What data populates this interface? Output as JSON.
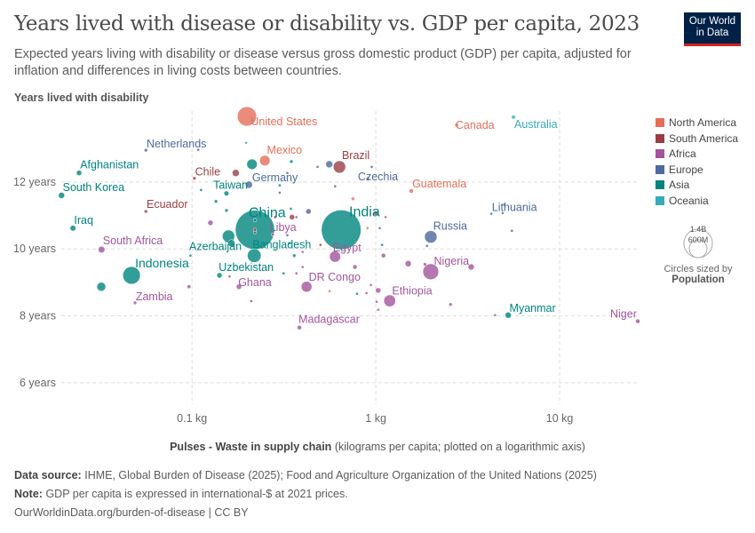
{
  "header": {
    "title": "Years lived with disease or disability vs. GDP per capita, 2023",
    "subtitle": "Expected years living with disability or disease versus gross domestic product (GDP) per capita, adjusted for inflation and differences in living costs between countries.",
    "logo": "Our World in Data"
  },
  "legend": {
    "regions": [
      {
        "name": "North America",
        "color": "#E56E5A"
      },
      {
        "name": "South America",
        "color": "#9A3D43"
      },
      {
        "name": "Africa",
        "color": "#A2559C"
      },
      {
        "name": "Europe",
        "color": "#4C6A9C"
      },
      {
        "name": "Asia",
        "color": "#00847E"
      },
      {
        "name": "Oceania",
        "color": "#38AABA"
      }
    ],
    "size_big": "1.4B",
    "size_small": "600M",
    "size_note": "Circles sized by",
    "size_var": "Population"
  },
  "footer": {
    "source_label": "Data source:",
    "source": "IHME, Global Burden of Disease (2025); Food and Agriculture Organization of the United Nations (2025)",
    "note_label": "Note:",
    "note": "GDP per capita is expressed in international-$ at 2021 prices.",
    "url": "OurWorldinData.org/burden-of-disease | CC BY"
  },
  "chart_data": {
    "type": "scatter",
    "xlabel": "Pulses - Waste in supply chain",
    "xlabel_note": "(kilograms per capita; plotted on a logarithmic axis)",
    "ylabel": "Years lived with disability",
    "x_scale": "log",
    "xlim": [
      0.0186,
      27.2
    ],
    "ylim": [
      5.36,
      14.12
    ],
    "x_ticks": [
      {
        "v": 0.1,
        "label": "0.1 kg"
      },
      {
        "v": 1,
        "label": "1 kg"
      },
      {
        "v": 10,
        "label": "10 kg"
      }
    ],
    "y_ticks": [
      {
        "v": 6,
        "label": "6 years"
      },
      {
        "v": 8,
        "label": "8 years"
      },
      {
        "v": 10,
        "label": "10 years"
      },
      {
        "v": 12,
        "label": "12 years"
      }
    ],
    "grid": true,
    "legend_position": "right",
    "points": [
      {
        "name": "United States",
        "region": "North America",
        "x": 0.199,
        "y": 13.96,
        "pop": 340
      },
      {
        "name": "Canada",
        "region": "North America",
        "x": 2.75,
        "y": 13.7,
        "pop": 12
      },
      {
        "name": "Australia",
        "region": "Oceania",
        "x": 5.61,
        "y": 13.94,
        "pop": 14
      },
      {
        "name": "Netherlands",
        "region": "Europe",
        "x": 0.0561,
        "y": 12.95,
        "pop": 11
      },
      {
        "name": "Mexico",
        "region": "North America",
        "x": 0.249,
        "y": 12.64,
        "pop": 100
      },
      {
        "name": "Brazil",
        "region": "South America",
        "x": 0.634,
        "y": 12.45,
        "pop": 140
      },
      {
        "name": "Afghanistan",
        "region": "Asia",
        "x": 0.0243,
        "y": 12.27,
        "pop": 26
      },
      {
        "name": "Chile",
        "region": "South America",
        "x": 0.103,
        "y": 12.11,
        "pop": 11
      },
      {
        "name": "Germany",
        "region": "Europe",
        "x": 0.204,
        "y": 11.92,
        "pop": 46
      },
      {
        "name": "Czechia",
        "region": "Europe",
        "x": 0.905,
        "y": 12.1,
        "pop": 11
      },
      {
        "name": "South Korea",
        "region": "Asia",
        "x": 0.0195,
        "y": 11.6,
        "pop": 35
      },
      {
        "name": "Guatemala",
        "region": "North America",
        "x": 1.56,
        "y": 11.73,
        "pop": 18
      },
      {
        "name": "Taiwan",
        "region": "Asia",
        "x": 0.154,
        "y": 11.66,
        "pop": 23
      },
      {
        "name": "Ecuador",
        "region": "South America",
        "x": 0.0561,
        "y": 11.12,
        "pop": 11
      },
      {
        "name": "Lithuania",
        "region": "Europe",
        "x": 4.25,
        "y": 11.05,
        "pop": 6
      },
      {
        "name": "China",
        "region": "Asia",
        "x": 0.22,
        "y": 10.57,
        "pop": 1410
      },
      {
        "name": "India",
        "region": "Asia",
        "x": 0.648,
        "y": 10.57,
        "pop": 1440
      },
      {
        "name": "Iraq",
        "region": "Asia",
        "x": 0.0225,
        "y": 10.62,
        "pop": 30
      },
      {
        "name": "Libya",
        "region": "Africa",
        "x": 0.275,
        "y": 10.43,
        "pop": 7
      },
      {
        "name": "Russia",
        "region": "Europe",
        "x": 1.99,
        "y": 10.36,
        "pop": 144
      },
      {
        "name": "Bangladesh",
        "region": "Asia",
        "x": 0.218,
        "y": 9.8,
        "pop": 173
      },
      {
        "name": "South Africa",
        "region": "Africa",
        "x": 0.0322,
        "y": 9.98,
        "pop": 40
      },
      {
        "name": "Egypt",
        "region": "Africa",
        "x": 0.6,
        "y": 9.77,
        "pop": 114
      },
      {
        "name": "Azerbaijan",
        "region": "Asia",
        "x": 0.098,
        "y": 9.8,
        "pop": 7
      },
      {
        "name": "Indonesia",
        "region": "Asia",
        "x": 0.0469,
        "y": 9.21,
        "pop": 281
      },
      {
        "name": "Nigeria",
        "region": "Africa",
        "x": 1.99,
        "y": 9.32,
        "pop": 228
      },
      {
        "name": "Uzbekistan",
        "region": "Asia",
        "x": 0.141,
        "y": 9.21,
        "pop": 26
      },
      {
        "name": "DR Congo",
        "region": "Africa",
        "x": 0.42,
        "y": 8.87,
        "pop": 106
      },
      {
        "name": "Ghana",
        "region": "Africa",
        "x": 0.18,
        "y": 8.87,
        "pop": 26
      },
      {
        "name": "Ethiopia",
        "region": "Africa",
        "x": 1.19,
        "y": 8.45,
        "pop": 129
      },
      {
        "name": "Zambia",
        "region": "Africa",
        "x": 0.049,
        "y": 8.39,
        "pop": 11
      },
      {
        "name": "Myanmar",
        "region": "Asia",
        "x": 5.25,
        "y": 8.02,
        "pop": 35
      },
      {
        "name": "Madagascar",
        "region": "Africa",
        "x": 0.384,
        "y": 7.65,
        "pop": 18
      },
      {
        "name": "Niger",
        "region": "Africa",
        "x": 26.6,
        "y": 7.84,
        "pop": 18
      },
      {
        "region": "Asia",
        "x": 0.0321,
        "y": 8.87,
        "pop": 72
      },
      {
        "region": "Africa",
        "x": 0.0963,
        "y": 8.87,
        "pop": 12
      },
      {
        "region": "Oceania",
        "x": 0.197,
        "y": 13.17,
        "pop": 6
      },
      {
        "region": "Europe",
        "x": 0.108,
        "y": 12.96,
        "pop": 6
      },
      {
        "region": "South America",
        "x": 0.173,
        "y": 12.27,
        "pop": 46
      },
      {
        "region": "Asia",
        "x": 0.212,
        "y": 12.53,
        "pop": 100
      },
      {
        "region": "Asia",
        "x": 0.347,
        "y": 12.61,
        "pop": 11
      },
      {
        "region": "Europe",
        "x": 0.482,
        "y": 12.45,
        "pop": 6
      },
      {
        "region": "Europe",
        "x": 0.558,
        "y": 12.53,
        "pop": 46
      },
      {
        "region": "Europe",
        "x": 0.95,
        "y": 12.45,
        "pop": 6
      },
      {
        "region": "Europe",
        "x": 0.33,
        "y": 12.27,
        "pop": 6
      },
      {
        "region": "Europe",
        "x": 0.6,
        "y": 11.87,
        "pop": 6
      },
      {
        "region": "Asia",
        "x": 0.3,
        "y": 11.9,
        "pop": 6
      },
      {
        "region": "Europe",
        "x": 0.3,
        "y": 11.68,
        "pop": 6
      },
      {
        "region": "Asia",
        "x": 0.112,
        "y": 11.76,
        "pop": 6
      },
      {
        "region": "Asia",
        "x": 0.135,
        "y": 11.42,
        "pop": 11
      },
      {
        "region": "Asia",
        "x": 0.154,
        "y": 11.15,
        "pop": 11
      },
      {
        "region": "Asia",
        "x": 0.345,
        "y": 11.2,
        "pop": 6
      },
      {
        "region": "Europe",
        "x": 0.43,
        "y": 11.12,
        "pop": 26
      },
      {
        "region": "North America",
        "x": 0.75,
        "y": 11.5,
        "pop": 11
      },
      {
        "region": "Africa",
        "x": 0.37,
        "y": 10.95,
        "pop": 6
      },
      {
        "region": "South America",
        "x": 0.283,
        "y": 10.95,
        "pop": 6
      },
      {
        "region": "South America",
        "x": 0.35,
        "y": 10.95,
        "pop": 26
      },
      {
        "region": "South America",
        "x": 1.0,
        "y": 11.07,
        "pop": 18
      },
      {
        "region": "Africa",
        "x": 1.13,
        "y": 10.95,
        "pop": 6
      },
      {
        "region": "North America",
        "x": 0.9,
        "y": 10.62,
        "pop": 6
      },
      {
        "region": "Europe",
        "x": 1.05,
        "y": 10.62,
        "pop": 6
      },
      {
        "region": "Africa",
        "x": 0.126,
        "y": 10.78,
        "pop": 26
      },
      {
        "region": "Asia",
        "x": 0.158,
        "y": 10.38,
        "pop": 141
      },
      {
        "region": "Asia",
        "x": 0.164,
        "y": 10.17,
        "pop": 46
      },
      {
        "region": "Asia",
        "x": 0.22,
        "y": 10.86,
        "pop": 11
      },
      {
        "region": "Europe",
        "x": 0.22,
        "y": 10.5,
        "pop": 11
      },
      {
        "region": "South America",
        "x": 0.22,
        "y": 10.57,
        "pop": 11
      },
      {
        "region": "Europe",
        "x": 0.33,
        "y": 10.41,
        "pop": 6
      },
      {
        "region": "Asia",
        "x": 0.34,
        "y": 10.17,
        "pop": 6
      },
      {
        "region": "South America",
        "x": 0.5,
        "y": 10.12,
        "pop": 6
      },
      {
        "region": "Asia",
        "x": 1.08,
        "y": 10.12,
        "pop": 6
      },
      {
        "region": "Europe",
        "x": 1.9,
        "y": 10.09,
        "pop": 6
      },
      {
        "region": "Europe",
        "x": 5.0,
        "y": 11.32,
        "pop": 6
      },
      {
        "region": "Europe",
        "x": 4.9,
        "y": 11.07,
        "pop": 6
      },
      {
        "region": "Europe",
        "x": 5.5,
        "y": 10.54,
        "pop": 6
      },
      {
        "region": "Asia",
        "x": 0.36,
        "y": 9.8,
        "pop": 11
      },
      {
        "region": "Africa",
        "x": 0.4,
        "y": 9.91,
        "pop": 6
      },
      {
        "region": "Africa",
        "x": 1.1,
        "y": 9.8,
        "pop": 18
      },
      {
        "region": "Africa",
        "x": 1.5,
        "y": 9.56,
        "pop": 35
      },
      {
        "region": "Africa",
        "x": 1.85,
        "y": 9.54,
        "pop": 11
      },
      {
        "region": "Africa",
        "x": 3.3,
        "y": 9.46,
        "pop": 35
      },
      {
        "region": "Africa",
        "x": 0.77,
        "y": 9.46,
        "pop": 18
      },
      {
        "region": "Africa",
        "x": 0.4,
        "y": 9.46,
        "pop": 6
      },
      {
        "region": "Africa",
        "x": 0.37,
        "y": 9.27,
        "pop": 6
      },
      {
        "region": "Asia",
        "x": 0.315,
        "y": 9.27,
        "pop": 6
      },
      {
        "region": "Africa",
        "x": 0.16,
        "y": 9.18,
        "pop": 6
      },
      {
        "region": "North America",
        "x": 0.56,
        "y": 8.74,
        "pop": 6
      },
      {
        "region": "Asia",
        "x": 0.79,
        "y": 8.66,
        "pop": 6
      },
      {
        "region": "Africa",
        "x": 0.89,
        "y": 8.68,
        "pop": 6
      },
      {
        "region": "Africa",
        "x": 0.94,
        "y": 8.92,
        "pop": 6
      },
      {
        "region": "Africa",
        "x": 1.03,
        "y": 8.76,
        "pop": 26
      },
      {
        "region": "Africa",
        "x": 1.01,
        "y": 8.42,
        "pop": 6
      },
      {
        "region": "Africa",
        "x": 1.03,
        "y": 8.18,
        "pop": 6
      },
      {
        "region": "Africa",
        "x": 0.21,
        "y": 8.44,
        "pop": 6
      },
      {
        "region": "Africa",
        "x": 2.55,
        "y": 8.34,
        "pop": 11
      },
      {
        "region": "Africa",
        "x": 4.45,
        "y": 8.02,
        "pop": 6
      }
    ]
  }
}
